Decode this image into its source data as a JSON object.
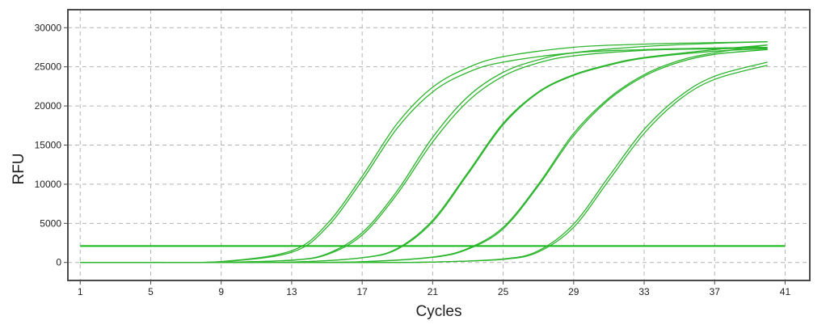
{
  "chart_data": {
    "type": "line",
    "title": "",
    "xlabel": "Cycles",
    "ylabel": "RFU",
    "xlim": [
      0.3,
      42.4
    ],
    "ylim": [
      -2300,
      32300
    ],
    "xticks": [
      "1",
      "5",
      "9",
      "13",
      "17",
      "21",
      "25",
      "29",
      "33",
      "37",
      "41"
    ],
    "yticks": [
      "0",
      "5000",
      "10000",
      "15000",
      "20000",
      "25000",
      "30000"
    ],
    "grid": true,
    "legend": "none",
    "colors": {
      "curve": "#2db52d",
      "threshold": "#14b814",
      "grid": "#b4b4b4",
      "frame": "#4a4a4a"
    },
    "threshold": {
      "y": 2100,
      "x": [
        1,
        41
      ]
    },
    "series": [
      {
        "x": [
          1,
          5,
          9,
          13,
          15,
          17,
          19,
          21,
          23,
          25,
          29,
          33,
          37,
          40
        ],
        "values": [
          0,
          10,
          120,
          1500,
          4900,
          11000,
          17800,
          22400,
          24900,
          26300,
          27500,
          27900,
          28100,
          28200
        ]
      },
      {
        "x": [
          1,
          5,
          9,
          13,
          15,
          17,
          19,
          21,
          23,
          25,
          29,
          33,
          37,
          40
        ],
        "values": [
          0,
          10,
          110,
          1300,
          4500,
          10500,
          17200,
          21800,
          24300,
          25600,
          26800,
          27200,
          27400,
          27500
        ]
      },
      {
        "x": [
          1,
          5,
          9,
          13,
          15,
          17,
          19,
          21,
          23,
          25,
          27,
          29,
          33,
          37,
          40
        ],
        "values": [
          0,
          0,
          20,
          300,
          1100,
          3800,
          9200,
          16000,
          21200,
          24300,
          25900,
          26800,
          27600,
          28000,
          28200
        ]
      },
      {
        "x": [
          1,
          5,
          9,
          13,
          15,
          17,
          19,
          21,
          23,
          25,
          27,
          29,
          33,
          37,
          40
        ],
        "values": [
          0,
          0,
          20,
          280,
          1000,
          3500,
          8800,
          15400,
          20600,
          23800,
          25500,
          26400,
          27100,
          27300,
          27400
        ]
      },
      {
        "x": [
          1,
          5,
          9,
          13,
          17,
          19,
          21,
          23,
          25,
          27,
          29,
          31,
          33,
          37,
          40
        ],
        "values": [
          0,
          0,
          0,
          40,
          600,
          1800,
          5400,
          11500,
          17800,
          21800,
          24000,
          25300,
          26200,
          27200,
          27800
        ]
      },
      {
        "x": [
          1,
          5,
          9,
          13,
          17,
          19,
          21,
          23,
          25,
          27,
          29,
          31,
          33,
          37,
          40
        ],
        "values": [
          0,
          0,
          0,
          40,
          600,
          1700,
          5200,
          11300,
          17600,
          21700,
          23900,
          25200,
          26100,
          27000,
          27300
        ]
      },
      {
        "x": [
          1,
          5,
          9,
          13,
          17,
          21,
          23,
          25,
          27,
          29,
          31,
          33,
          35,
          37,
          40
        ],
        "values": [
          0,
          0,
          0,
          0,
          100,
          700,
          1800,
          4500,
          10000,
          16500,
          21000,
          24000,
          25800,
          26800,
          27800
        ]
      },
      {
        "x": [
          1,
          5,
          9,
          13,
          17,
          21,
          23,
          25,
          27,
          29,
          31,
          33,
          35,
          37,
          40
        ],
        "values": [
          0,
          0,
          0,
          0,
          90,
          650,
          1700,
          4300,
          9800,
          16200,
          20800,
          23800,
          25600,
          26600,
          27200
        ]
      },
      {
        "x": [
          1,
          5,
          9,
          13,
          17,
          21,
          25,
          27,
          29,
          31,
          33,
          35,
          37,
          40
        ],
        "values": [
          0,
          0,
          0,
          0,
          0,
          50,
          450,
          1500,
          4900,
          11000,
          17000,
          21200,
          23800,
          25600
        ]
      },
      {
        "x": [
          1,
          5,
          9,
          13,
          17,
          21,
          25,
          27,
          29,
          31,
          33,
          35,
          37,
          40
        ],
        "values": [
          0,
          0,
          0,
          0,
          0,
          50,
          400,
          1350,
          4500,
          10500,
          16500,
          20800,
          23400,
          25200
        ]
      }
    ]
  }
}
